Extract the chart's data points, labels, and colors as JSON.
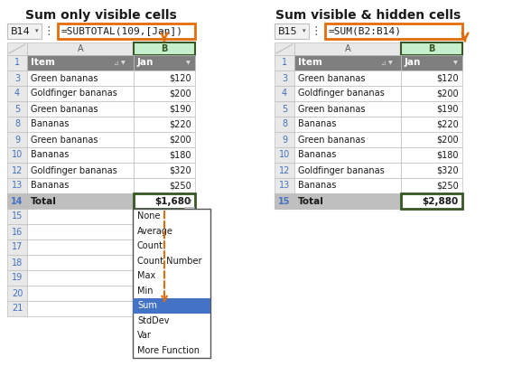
{
  "title_left": "Sum only visible cells",
  "title_right": "Sum visible & hidden cells",
  "formula_left": "=SUBTOTAL(109,[Jan])",
  "formula_right": "=SUM(B2:B14)",
  "cell_ref_left": "B14",
  "cell_ref_right": "B15",
  "rows": [
    {
      "row": 3,
      "item": "Green bananas",
      "value": "$120"
    },
    {
      "row": 4,
      "item": "Goldfinger bananas",
      "value": "$200"
    },
    {
      "row": 5,
      "item": "Green bananas",
      "value": "$190"
    },
    {
      "row": 8,
      "item": "Bananas",
      "value": "$220"
    },
    {
      "row": 9,
      "item": "Green bananas",
      "value": "$200"
    },
    {
      "row": 10,
      "item": "Bananas",
      "value": "$180"
    },
    {
      "row": 12,
      "item": "Goldfinger bananas",
      "value": "$320"
    },
    {
      "row": 13,
      "item": "Bananas",
      "value": "$250"
    }
  ],
  "total_left": {
    "row": 14,
    "label": "Total",
    "value": "$1,680"
  },
  "total_right": {
    "row": 15,
    "label": "Total",
    "value": "$2,880"
  },
  "extra_rows_left": [
    15,
    16,
    17,
    18,
    19,
    20,
    21
  ],
  "dropdown_items": [
    "None",
    "Average",
    "Count",
    "Count Number",
    "Max",
    "Min",
    "Sum",
    "StdDev",
    "Var",
    "More Function"
  ],
  "dropdown_selected_idx": 6,
  "header_bg": "#7f7f7f",
  "header_text": "#ffffff",
  "row_num_color": "#4472c4",
  "formula_border": "#e36c0a",
  "green_border": "#375623",
  "green_header_bg": "#c6efce",
  "green_header_text": "#375623",
  "col_b_data_bg": "#ffffff",
  "dropdown_sel_bg": "#4472c4",
  "dropdown_sel_text": "#ffffff",
  "arrow_color": "#e36c0a",
  "grid_color": "#bfbfbf",
  "total_bg": "#bfbfbf",
  "bg_color": "#ffffff",
  "fontsize_title": 10,
  "fontsize_formula": 8,
  "fontsize_cell": 7.5,
  "fontsize_dropdown": 7.5
}
